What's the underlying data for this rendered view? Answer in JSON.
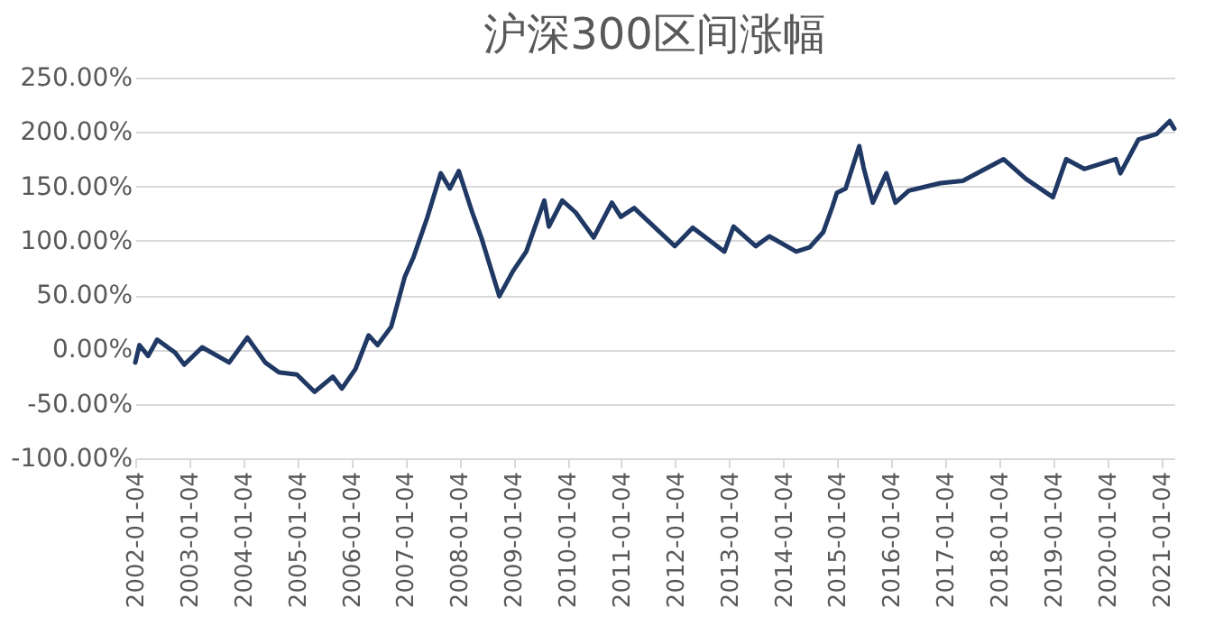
{
  "chart_data": {
    "type": "line",
    "title": "沪深300区间涨幅",
    "x": [
      "2002-01-04",
      "2002-02",
      "2002-04",
      "2002-06",
      "2002-10",
      "2002-12",
      "2003-04",
      "2003-10",
      "2004-02",
      "2004-06",
      "2004-09",
      "2005-01",
      "2005-05",
      "2005-09",
      "2005-11",
      "2006-02",
      "2006-05",
      "2006-07",
      "2006-10",
      "2007-01",
      "2007-03",
      "2007-06",
      "2007-09",
      "2007-11",
      "2008-01",
      "2008-04",
      "2008-06",
      "2008-08",
      "2008-10",
      "2009-01",
      "2009-04",
      "2009-08",
      "2009-09",
      "2009-12",
      "2010-03",
      "2010-07",
      "2010-11",
      "2011-01",
      "2011-04",
      "2012-01",
      "2012-05",
      "2012-12",
      "2013-02",
      "2013-07",
      "2013-10",
      "2014-04",
      "2014-07",
      "2014-10",
      "2014-12",
      "2015-01",
      "2015-03",
      "2015-06",
      "2015-07",
      "2015-09",
      "2015-12",
      "2016-02",
      "2016-05",
      "2016-12",
      "2017-05",
      "2018-02",
      "2018-07",
      "2019-01",
      "2019-04",
      "2019-08",
      "2020-03",
      "2020-04",
      "2020-08",
      "2020-12",
      "2021-03",
      "2021-04"
    ],
    "series": [
      {
        "color": "#1f3864",
        "values": [
          -12,
          4,
          -6,
          9,
          -3,
          -14,
          2,
          -12,
          11,
          -12,
          -21,
          -23,
          -39,
          -25,
          -36,
          -18,
          13,
          4,
          21,
          67,
          85,
          121,
          162,
          148,
          164,
          126,
          103,
          76,
          49,
          72,
          90,
          137,
          113,
          137,
          126,
          103,
          135,
          122,
          130,
          95,
          112,
          90,
          113,
          95,
          104,
          90,
          94,
          108,
          131,
          144,
          148,
          187,
          167,
          135,
          162,
          135,
          146,
          153,
          155,
          175,
          157,
          140,
          175,
          166,
          175,
          162,
          193,
          198,
          210,
          203
        ]
      }
    ],
    "xlim": [
      "2002-01-04",
      "2021-04-01"
    ],
    "xticks": [
      "2002-01-04",
      "2003-01-04",
      "2004-01-04",
      "2005-01-04",
      "2006-01-04",
      "2007-01-04",
      "2008-01-04",
      "2009-01-04",
      "2010-01-04",
      "2011-01-04",
      "2012-01-04",
      "2013-01-04",
      "2014-01-04",
      "2015-01-04",
      "2016-01-04",
      "2017-01-04",
      "2018-01-04",
      "2019-01-04",
      "2020-01-04",
      "2021-01-04"
    ],
    "ylim": [
      -100,
      250
    ],
    "yticks": [
      {
        "value": -100,
        "label": "-100.00%"
      },
      {
        "value": -50,
        "label": "-50.00%"
      },
      {
        "value": 0,
        "label": "0.00%"
      },
      {
        "value": 50,
        "label": "50.00%"
      },
      {
        "value": 100,
        "label": "100.00%"
      },
      {
        "value": 150,
        "label": "150.00%"
      },
      {
        "value": 200,
        "label": "200.00%"
      },
      {
        "value": 250,
        "label": "250.00%"
      }
    ],
    "grid": "y",
    "marker": "none",
    "line_style": "solid"
  }
}
